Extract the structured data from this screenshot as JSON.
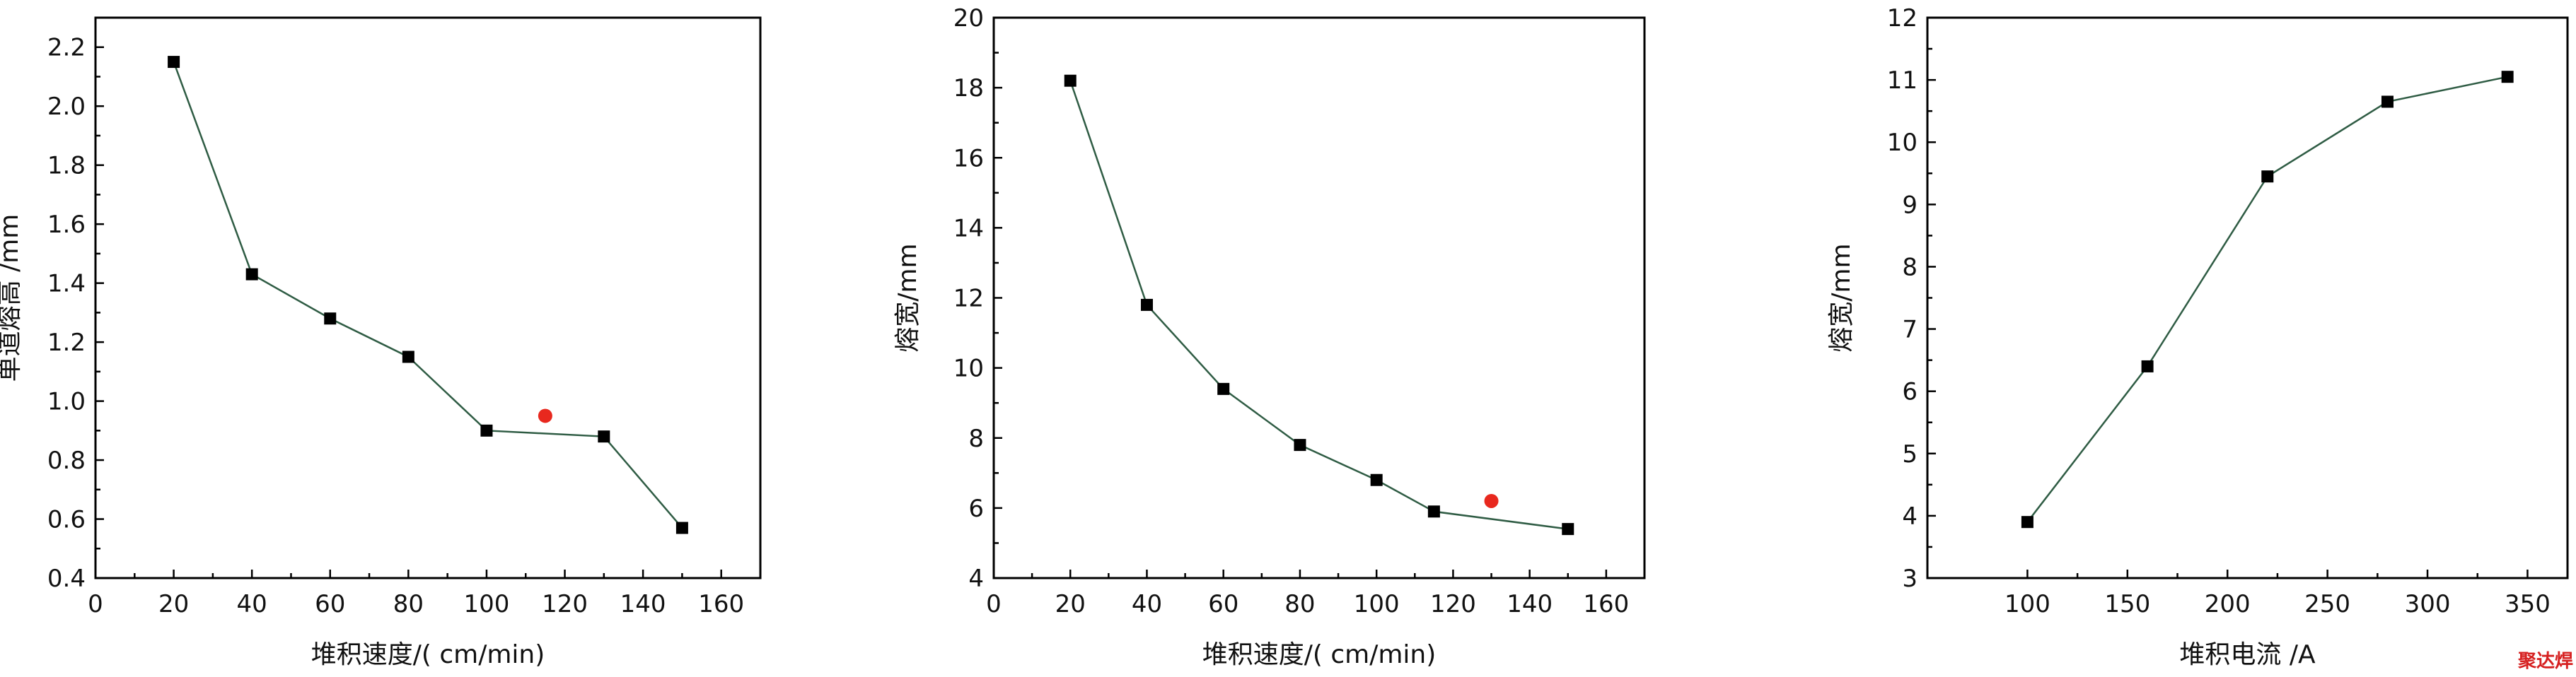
{
  "chart_data": [
    {
      "type": "line",
      "xlabel": "堆积速度/( cm/min)",
      "ylabel": "单道熔高 /mm",
      "xlim": [
        0,
        170
      ],
      "ylim": [
        0.4,
        2.3
      ],
      "xticks": [
        0,
        20,
        40,
        60,
        80,
        100,
        120,
        140,
        160
      ],
      "yticks": [
        0.4,
        0.6,
        0.8,
        1.0,
        1.2,
        1.4,
        1.6,
        1.8,
        2.0,
        2.2
      ],
      "ytick_labels": [
        "0.4",
        "0.6",
        "0.8",
        "1.0",
        "1.2",
        "1.4",
        "1.6",
        "1.8",
        "2.0",
        "2.2"
      ],
      "x": [
        20,
        40,
        60,
        80,
        100,
        130,
        150
      ],
      "y": [
        2.15,
        1.43,
        1.28,
        1.15,
        0.9,
        0.88,
        0.57
      ],
      "highlight_points": [
        {
          "x": 115,
          "y": 0.95
        }
      ],
      "grid": false
    },
    {
      "type": "line",
      "xlabel": "堆积速度/( cm/min)",
      "ylabel": "熔宽/mm",
      "xlim": [
        0,
        170
      ],
      "ylim": [
        4,
        20
      ],
      "xticks": [
        0,
        20,
        40,
        60,
        80,
        100,
        120,
        140,
        160
      ],
      "yticks": [
        4,
        6,
        8,
        10,
        12,
        14,
        16,
        18,
        20
      ],
      "ytick_labels": [
        "4",
        "6",
        "8",
        "10",
        "12",
        "14",
        "16",
        "18",
        "20"
      ],
      "x": [
        20,
        40,
        60,
        80,
        100,
        115,
        150
      ],
      "y": [
        18.2,
        11.8,
        9.4,
        7.8,
        6.8,
        5.9,
        5.4
      ],
      "highlight_points": [
        {
          "x": 130,
          "y": 6.2
        }
      ],
      "grid": false
    },
    {
      "type": "line",
      "xlabel": "堆积电流 /A",
      "ylabel": "熔宽/mm",
      "xlim": [
        50,
        370
      ],
      "ylim": [
        3,
        12
      ],
      "xticks": [
        100,
        150,
        200,
        250,
        300,
        350
      ],
      "yticks": [
        3,
        4,
        5,
        6,
        7,
        8,
        9,
        10,
        11,
        12
      ],
      "ytick_labels": [
        "3",
        "4",
        "5",
        "6",
        "7",
        "8",
        "9",
        "10",
        "11",
        "12"
      ],
      "x": [
        100,
        160,
        220,
        280,
        340
      ],
      "y": [
        3.9,
        6.4,
        9.45,
        10.65,
        11.05
      ],
      "highlight_points": [],
      "grid": false
    }
  ],
  "watermark": "聚达焊",
  "colors": {
    "line": "#2f5c44",
    "marker": "#000000",
    "highlight": "#e8281e"
  }
}
